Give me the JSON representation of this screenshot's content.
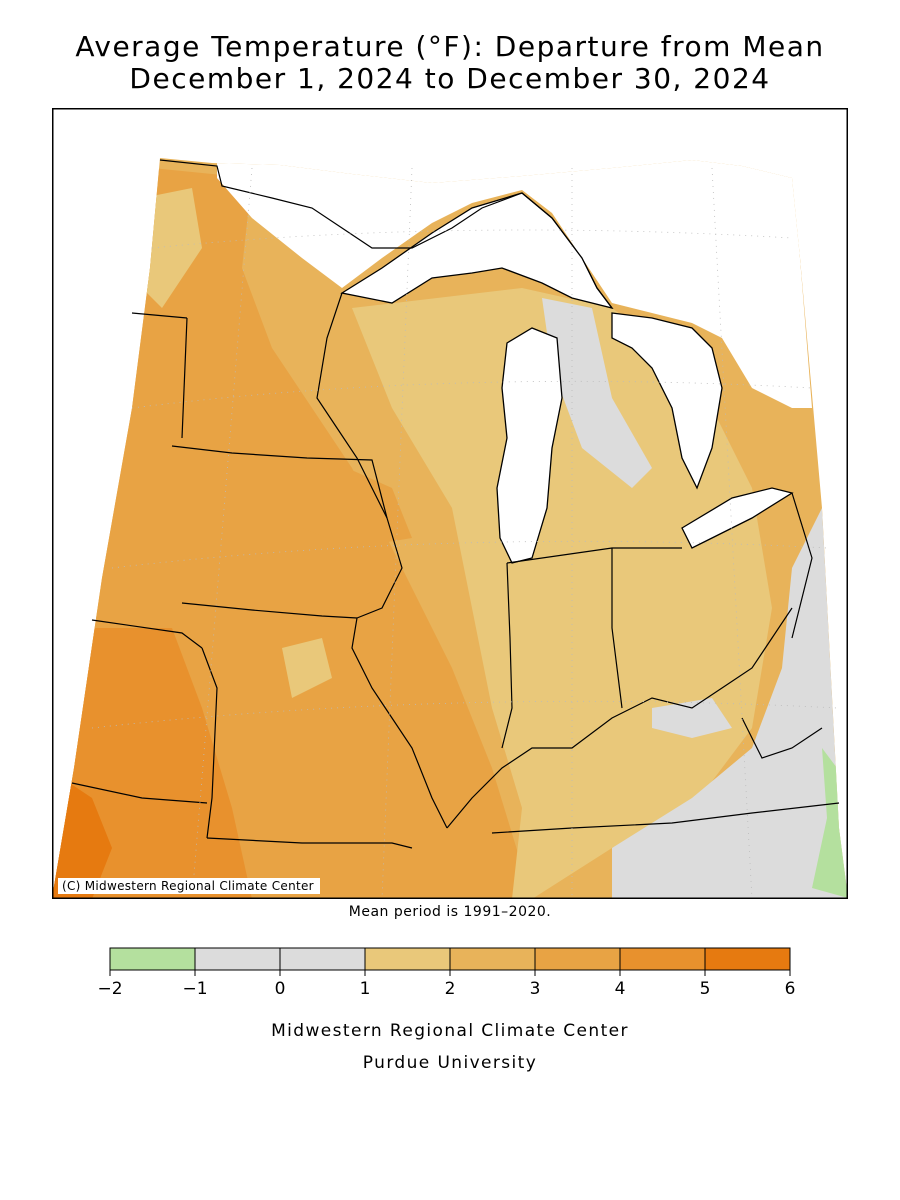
{
  "title_line1": "Average Temperature (°F): Departure from Mean",
  "title_line2": "December 1, 2024 to December 30, 2024",
  "copyright": "(C) Midwestern Regional Climate Center",
  "mean_period": "Mean period is 1991–2020.",
  "legend": {
    "ticks": [
      "−2",
      "−1",
      "0",
      "1",
      "2",
      "3",
      "4",
      "5",
      "6"
    ],
    "colors": [
      "#b4e09e",
      "#dcdcdc",
      "#dcdcdc",
      "#e9c87a",
      "#e8b35a",
      "#e8a344",
      "#e8912d",
      "#e67a10"
    ]
  },
  "credit_line1": "Midwestern Regional Climate Center",
  "credit_line2": "Purdue University",
  "map_colors": {
    "band_2_3": "#e8b35a",
    "band_1_2": "#e9c87a",
    "band_3_4": "#e8a344",
    "band_4_5": "#e8912d",
    "band_5_6": "#e67a10",
    "band_0_1": "#dcdcdc",
    "band_neg": "#b4e09e",
    "water": "#ffffff"
  }
}
